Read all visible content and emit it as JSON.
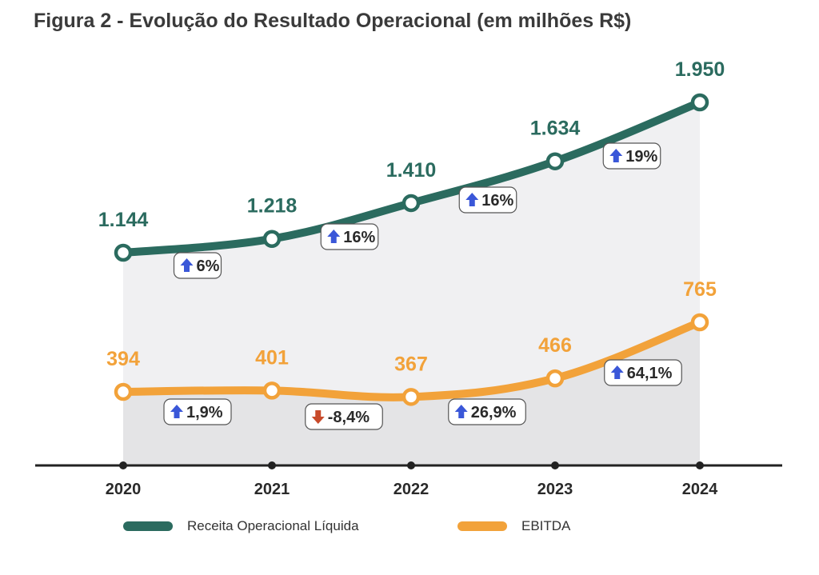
{
  "title": "Figura 2 - Evolução do Resultado Operacional (em milhões R$)",
  "colors": {
    "receita": "#2b6b5f",
    "ebitda": "#f2a23a",
    "area": "#ebebed",
    "up_arrow": "#3a57d8",
    "down_arrow": "#c84a2a",
    "axis": "#222222"
  },
  "legend": {
    "receita": "Receita Operacional Líquida",
    "ebitda": "EBITDA"
  },
  "chart_data": {
    "type": "line",
    "title": "Figura 2 - Evolução do Resultado Operacional (em milhões R$)",
    "categories": [
      "2020",
      "2021",
      "2022",
      "2023",
      "2024"
    ],
    "ylim": [
      0,
      2000
    ],
    "series": [
      {
        "key": "receita",
        "name": "Receita Operacional Líquida",
        "values": [
          1144,
          1218,
          1410,
          1634,
          1950
        ],
        "value_labels": [
          "1.144",
          "1.218",
          "1.410",
          "1.634",
          "1.950"
        ],
        "growth_labels": [
          {
            "text": "6%",
            "direction": "up"
          },
          {
            "text": "16%",
            "direction": "up"
          },
          {
            "text": "16%",
            "direction": "up"
          },
          {
            "text": "19%",
            "direction": "up"
          }
        ]
      },
      {
        "key": "ebitda",
        "name": "EBITDA",
        "values": [
          394,
          401,
          367,
          466,
          765
        ],
        "value_labels": [
          "394",
          "401",
          "367",
          "466",
          "765"
        ],
        "growth_labels": [
          {
            "text": "1,9%",
            "direction": "up"
          },
          {
            "text": "-8,4%",
            "direction": "down"
          },
          {
            "text": "26,9%",
            "direction": "up"
          },
          {
            "text": "64,1%",
            "direction": "up"
          }
        ]
      }
    ]
  }
}
